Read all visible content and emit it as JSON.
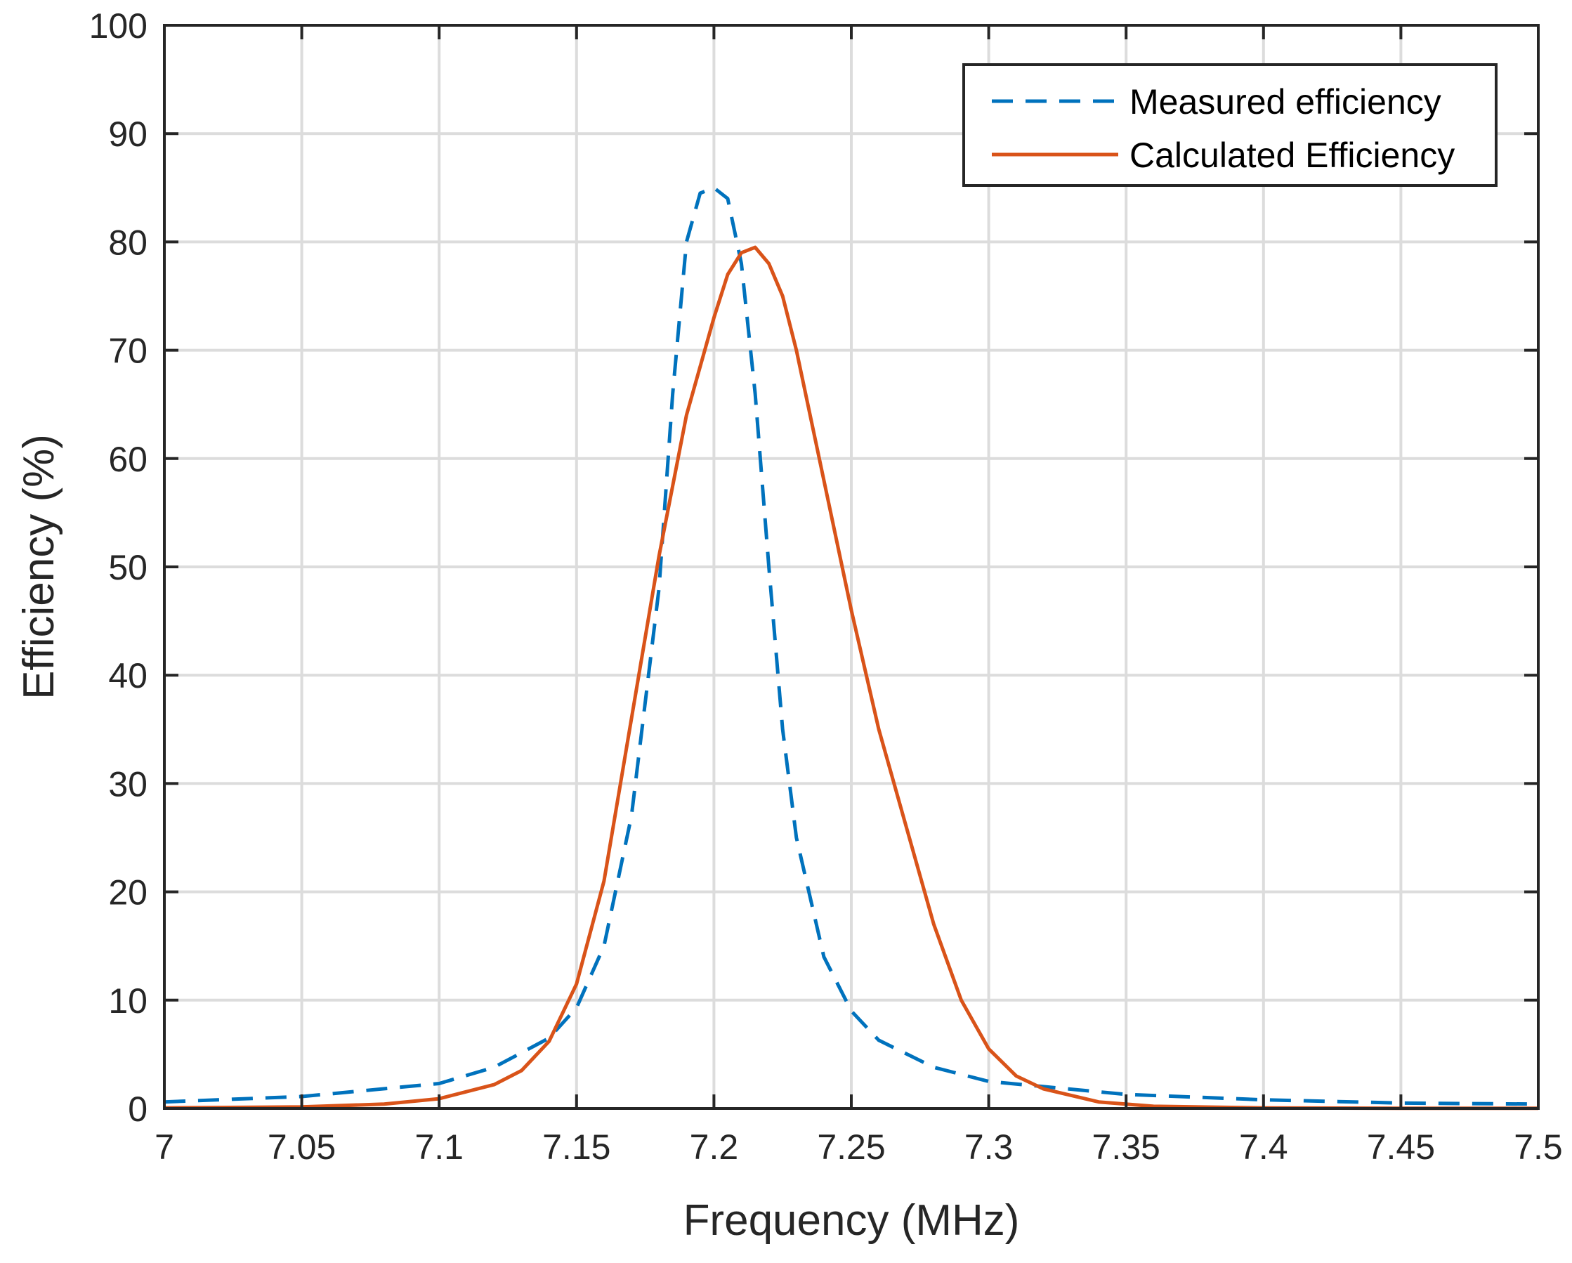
{
  "chart_data": {
    "type": "line",
    "title": "",
    "xlabel": "Frequency (MHz)",
    "ylabel": "Efficiency (%)",
    "xlim": [
      7,
      7.5
    ],
    "ylim": [
      0,
      100
    ],
    "grid": true,
    "legend_position": "top-right",
    "x_tick_labels": [
      "7",
      "7.05",
      "7.1",
      "7.15",
      "7.2",
      "7.25",
      "7.3",
      "7.35",
      "7.4",
      "7.45",
      "7.5"
    ],
    "y_tick_labels": [
      "0",
      "10",
      "20",
      "30",
      "40",
      "50",
      "60",
      "70",
      "80",
      "90",
      "100"
    ],
    "series": [
      {
        "name": "Measured efficiency",
        "style": "dashed",
        "color": "#0072BD",
        "x": [
          7.0,
          7.05,
          7.1,
          7.12,
          7.14,
          7.15,
          7.16,
          7.17,
          7.18,
          7.185,
          7.19,
          7.195,
          7.2,
          7.205,
          7.21,
          7.215,
          7.22,
          7.225,
          7.23,
          7.24,
          7.25,
          7.26,
          7.28,
          7.3,
          7.35,
          7.4,
          7.45,
          7.5
        ],
        "y": [
          0.6,
          1.1,
          2.3,
          3.8,
          6.5,
          9.3,
          15,
          27,
          48,
          66,
          80,
          84.5,
          85,
          84,
          78,
          66,
          50,
          35,
          25,
          14,
          9,
          6.3,
          3.8,
          2.5,
          1.3,
          0.8,
          0.5,
          0.4
        ]
      },
      {
        "name": "Calculated Efficiency",
        "style": "solid",
        "color": "#D95319",
        "x": [
          7.0,
          7.05,
          7.08,
          7.1,
          7.12,
          7.13,
          7.14,
          7.15,
          7.16,
          7.17,
          7.18,
          7.19,
          7.2,
          7.205,
          7.21,
          7.215,
          7.22,
          7.225,
          7.23,
          7.24,
          7.25,
          7.26,
          7.27,
          7.28,
          7.29,
          7.3,
          7.31,
          7.32,
          7.34,
          7.36,
          7.4,
          7.45,
          7.5
        ],
        "y": [
          0.05,
          0.15,
          0.4,
          0.9,
          2.2,
          3.5,
          6.2,
          11.5,
          21,
          36,
          51,
          64,
          73,
          77,
          79,
          79.5,
          78,
          75,
          70,
          58,
          46,
          35,
          26,
          17,
          10,
          5.5,
          3,
          1.8,
          0.6,
          0.2,
          0.05,
          0.02,
          0.01
        ]
      }
    ]
  }
}
